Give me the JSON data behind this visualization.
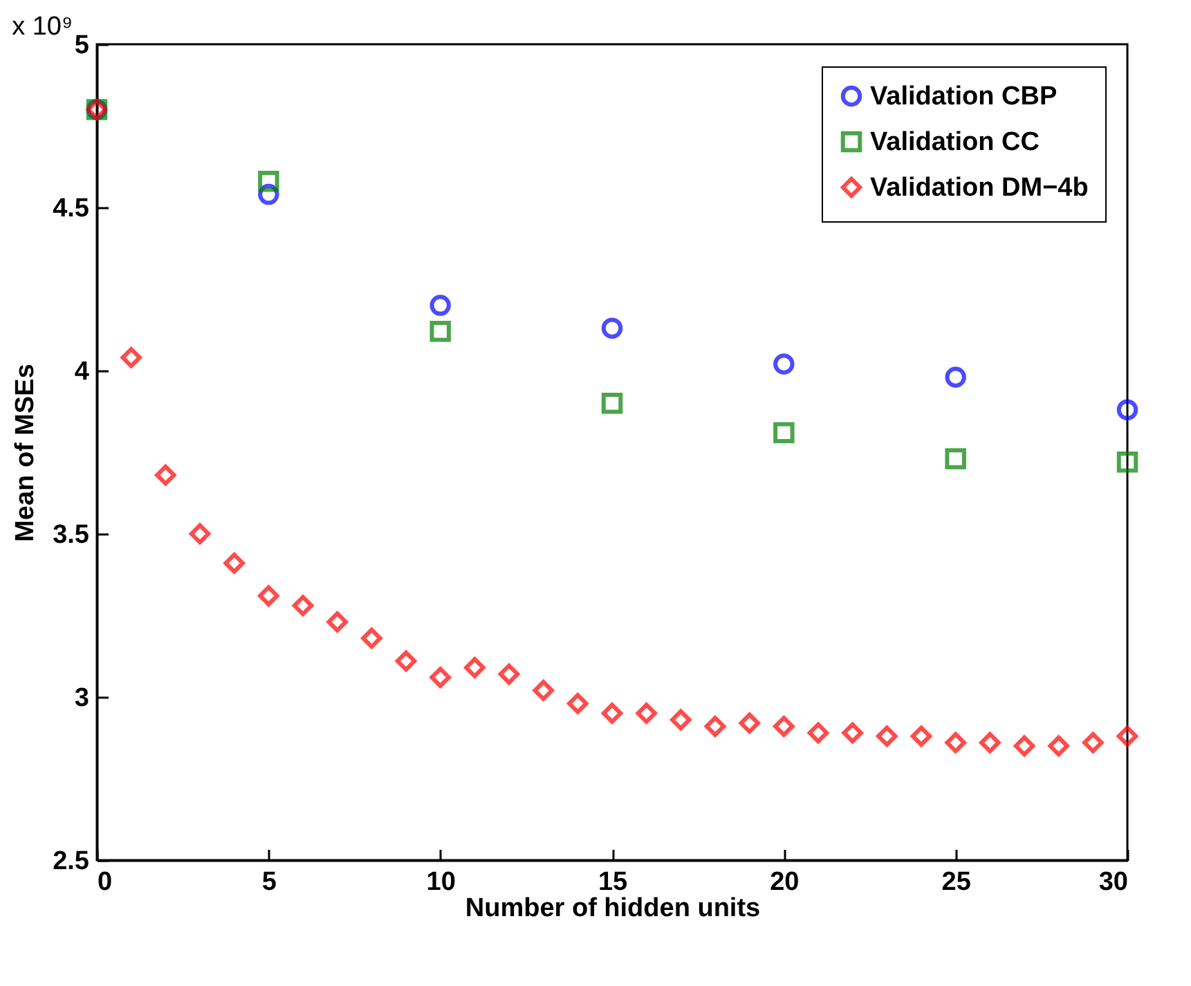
{
  "chart_data": {
    "type": "scatter",
    "xlabel": "Number of hidden units",
    "ylabel": "Mean of MSEs",
    "annotations": [
      "x 10⁹"
    ],
    "xlim": [
      0,
      30
    ],
    "xticks": [
      0,
      5,
      10,
      15,
      20,
      25,
      30
    ],
    "ylim": [
      2.5,
      5
    ],
    "yticks": [
      2.5,
      3,
      3.5,
      4,
      4.5,
      5
    ],
    "grid": false,
    "legend": "top right",
    "series": [
      {
        "name": "Validation CBP",
        "color": "#0000ff",
        "marker": "circle",
        "x": [
          0,
          5,
          10,
          15,
          20,
          25,
          30
        ],
        "values": [
          4.8,
          4.54,
          4.2,
          4.13,
          4.02,
          3.98,
          3.88
        ]
      },
      {
        "name": "Validation CC",
        "color": "#008000",
        "marker": "square",
        "x": [
          0,
          5,
          10,
          15,
          20,
          25,
          30
        ],
        "values": [
          4.8,
          4.58,
          4.12,
          3.9,
          3.81,
          3.73,
          3.72
        ]
      },
      {
        "name": "Validation DM−4b",
        "color": "#ff0000",
        "marker": "diamond",
        "x": [
          0,
          1,
          2,
          3,
          4,
          5,
          6,
          7,
          8,
          9,
          10,
          11,
          12,
          13,
          14,
          15,
          16,
          17,
          18,
          19,
          20,
          21,
          22,
          23,
          24,
          25,
          26,
          27,
          28,
          29,
          30
        ],
        "values": [
          4.8,
          4.04,
          3.68,
          3.5,
          3.41,
          3.31,
          3.28,
          3.23,
          3.18,
          3.11,
          3.06,
          3.09,
          3.07,
          3.02,
          2.98,
          2.95,
          2.95,
          2.93,
          2.91,
          2.92,
          2.91,
          2.89,
          2.89,
          2.88,
          2.88,
          2.86,
          2.86,
          2.85,
          2.85,
          2.86,
          2.88
        ]
      }
    ]
  }
}
